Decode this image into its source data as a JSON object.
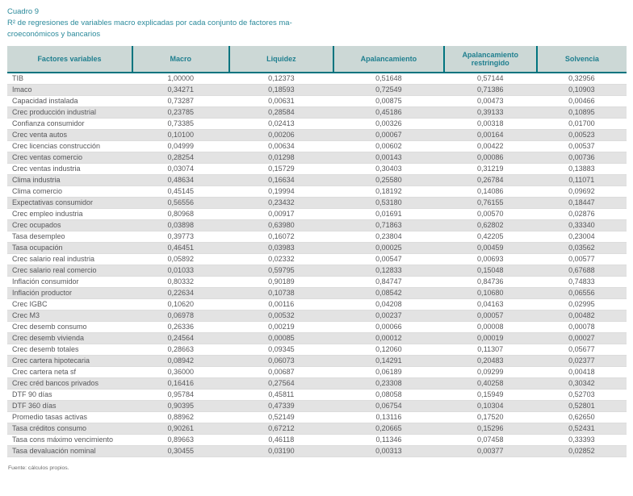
{
  "page": {
    "title": "Cuadro 9",
    "subtitle_line1": "R² de regresiones de variables macro explicadas por cada conjunto de factores ma-",
    "subtitle_line2": "croeconómicos y bancarios",
    "source_note": "Fuente: cálculos propios."
  },
  "colors": {
    "accent_teal": "#1f7f8f",
    "title_teal": "#2b8a9b",
    "header_background": "#ccd8d6",
    "header_rule": "#00747f",
    "row_stripe": "#e3e3e3",
    "body_text": "#57575a"
  },
  "table": {
    "columns": [
      "Factores variables",
      "Macro",
      "Liquidez",
      "Apalancamiento",
      "Apalancamiento restringido",
      "Solvencia"
    ],
    "rows": [
      {
        "label": "TIB",
        "values": [
          "1,00000",
          "0,12373",
          "0,51648",
          "0,57144",
          "0,32956"
        ]
      },
      {
        "label": "Imaco",
        "values": [
          "0,34271",
          "0,18593",
          "0,72549",
          "0,71386",
          "0,10903"
        ]
      },
      {
        "label": "Capacidad instalada",
        "values": [
          "0,73287",
          "0,00631",
          "0,00875",
          "0,00473",
          "0,00466"
        ]
      },
      {
        "label": "Crec producción industrial",
        "values": [
          "0,23785",
          "0,28584",
          "0,45186",
          "0,39133",
          "0,10895"
        ]
      },
      {
        "label": "Confianza consumidor",
        "values": [
          "0,73385",
          "0,02413",
          "0,00326",
          "0,00318",
          "0,01700"
        ]
      },
      {
        "label": "Crec venta autos",
        "values": [
          "0,10100",
          "0,00206",
          "0,00067",
          "0,00164",
          "0,00523"
        ]
      },
      {
        "label": "Crec licencias construcción",
        "values": [
          "0,04999",
          "0,00634",
          "0,00602",
          "0,00422",
          "0,00537"
        ]
      },
      {
        "label": "Crec ventas comercio",
        "values": [
          "0,28254",
          "0,01298",
          "0,00143",
          "0,00086",
          "0,00736"
        ]
      },
      {
        "label": "Crec ventas industria",
        "values": [
          "0,03074",
          "0,15729",
          "0,30403",
          "0,31219",
          "0,13883"
        ]
      },
      {
        "label": "Clima industria",
        "values": [
          "0,48634",
          "0,16634",
          "0,25580",
          "0,26784",
          "0,11071"
        ]
      },
      {
        "label": "Clima comercio",
        "values": [
          "0,45145",
          "0,19994",
          "0,18192",
          "0,14086",
          "0,09692"
        ]
      },
      {
        "label": "Expectativas consumidor",
        "values": [
          "0,56556",
          "0,23432",
          "0,53180",
          "0,76155",
          "0,18447"
        ]
      },
      {
        "label": "Crec empleo industria",
        "values": [
          "0,80968",
          "0,00917",
          "0,01691",
          "0,00570",
          "0,02876"
        ]
      },
      {
        "label": "Crec ocupados",
        "values": [
          "0,03898",
          "0,63980",
          "0,71863",
          "0,62802",
          "0,33340"
        ]
      },
      {
        "label": "Tasa desempleo",
        "values": [
          "0,39773",
          "0,16072",
          "0,23804",
          "0,42205",
          "0,23004"
        ]
      },
      {
        "label": "Tasa ocupación",
        "values": [
          "0,46451",
          "0,03983",
          "0,00025",
          "0,00459",
          "0,03562"
        ]
      },
      {
        "label": "Crec salario real industria",
        "values": [
          "0,05892",
          "0,02332",
          "0,00547",
          "0,00693",
          "0,00577"
        ]
      },
      {
        "label": "Crec salario real comercio",
        "values": [
          "0,01033",
          "0,59795",
          "0,12833",
          "0,15048",
          "0,67688"
        ]
      },
      {
        "label": "Inflación consumidor",
        "values": [
          "0,80332",
          "0,90189",
          "0,84747",
          "0,84736",
          "0,74833"
        ]
      },
      {
        "label": "Inflación productor",
        "values": [
          "0,22634",
          "0,10738",
          "0,08542",
          "0,10680",
          "0,06556"
        ]
      },
      {
        "label": "Crec IGBC",
        "values": [
          "0,10620",
          "0,00116",
          "0,04208",
          "0,04163",
          "0,02995"
        ]
      },
      {
        "label": "Crec M3",
        "values": [
          "0,06978",
          "0,00532",
          "0,00237",
          "0,00057",
          "0,00482"
        ]
      },
      {
        "label": "Crec desemb consumo",
        "values": [
          "0,26336",
          "0,00219",
          "0,00066",
          "0,00008",
          "0,00078"
        ]
      },
      {
        "label": "Crec desemb vivienda",
        "values": [
          "0,24564",
          "0,00085",
          "0,00012",
          "0,00019",
          "0,00027"
        ]
      },
      {
        "label": "Crec desemb totales",
        "values": [
          "0,28663",
          "0,09345",
          "0,12060",
          "0,11307",
          "0,05677"
        ]
      },
      {
        "label": "Crec cartera hipotecaria",
        "values": [
          "0,08942",
          "0,06073",
          "0,14291",
          "0,20483",
          "0,02377"
        ]
      },
      {
        "label": "Crec cartera neta sf",
        "values": [
          "0,36000",
          "0,00687",
          "0,06189",
          "0,09299",
          "0,00418"
        ]
      },
      {
        "label": "Crec créd bancos privados",
        "values": [
          "0,16416",
          "0,27564",
          "0,23308",
          "0,40258",
          "0,30342"
        ]
      },
      {
        "label": "DTF 90 días",
        "values": [
          "0,95784",
          "0,45811",
          "0,08058",
          "0,15949",
          "0,52703"
        ]
      },
      {
        "label": "DTF 360 días",
        "values": [
          "0,90395",
          "0,47339",
          "0,06754",
          "0,10304",
          "0,52801"
        ]
      },
      {
        "label": "Promedio tasas activas",
        "values": [
          "0,88962",
          "0,52149",
          "0,13116",
          "0,17520",
          "0,62650"
        ]
      },
      {
        "label": "Tasa créditos consumo",
        "values": [
          "0,90261",
          "0,67212",
          "0,20665",
          "0,15296",
          "0,52431"
        ]
      },
      {
        "label": "Tasa cons máximo vencimiento",
        "values": [
          "0,89663",
          "0,46118",
          "0,11346",
          "0,07458",
          "0,33393"
        ]
      },
      {
        "label": "Tasa devaluación nominal",
        "values": [
          "0,30455",
          "0,03190",
          "0,00313",
          "0,00377",
          "0,02852"
        ]
      }
    ]
  }
}
